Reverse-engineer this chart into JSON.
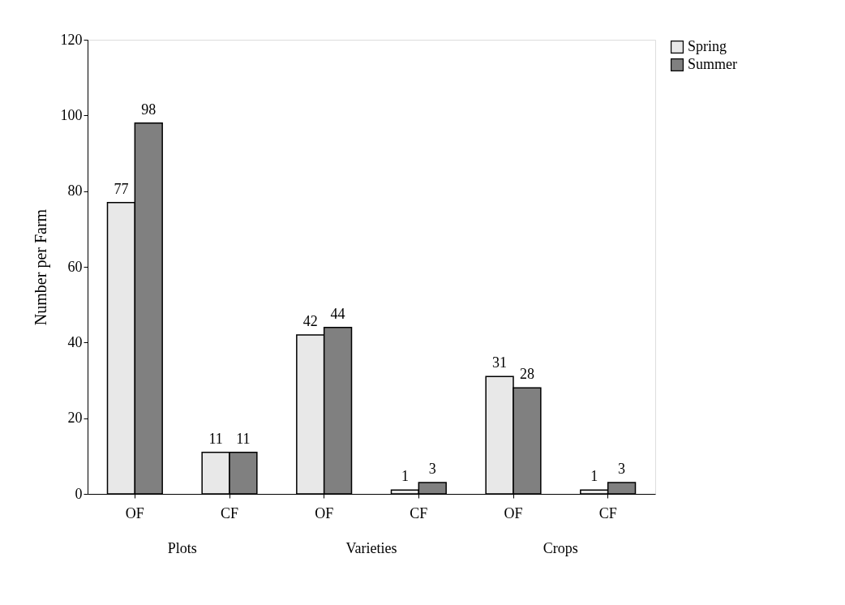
{
  "chart_data": {
    "type": "bar",
    "ylabel": "Number per Farm",
    "categories": [
      "OF",
      "CF",
      "OF",
      "CF",
      "OF",
      "CF"
    ],
    "series": [
      {
        "name": "Spring",
        "color": "#e8e8e8",
        "values": [
          77,
          11,
          42,
          1,
          31,
          1
        ]
      },
      {
        "name": "Summer",
        "color": "#808080",
        "values": [
          98,
          11,
          44,
          3,
          28,
          3
        ]
      }
    ],
    "ylim": [
      0,
      120
    ],
    "yticks": [
      0,
      20,
      40,
      60,
      80,
      100,
      120
    ],
    "grid": false,
    "legend": "right",
    "data_labels": true,
    "annotations": [
      "Plots",
      "Varieties",
      "Crops"
    ]
  }
}
